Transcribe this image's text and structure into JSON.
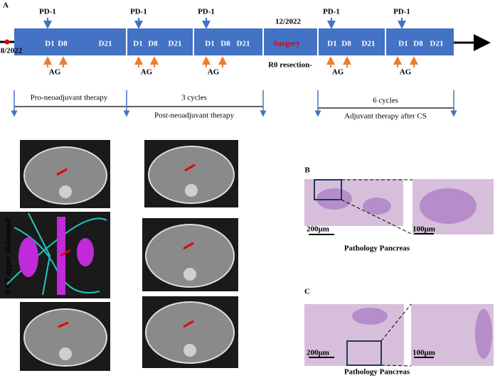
{
  "panel_labels": [
    "A",
    "B",
    "C"
  ],
  "timeline": {
    "start_date": "8/2022",
    "cycles": [
      {
        "pd1": "PD-1",
        "d1": "D1",
        "d8": "D8",
        "d21": "D21",
        "ag": "AG"
      },
      {
        "pd1": "PD-1",
        "d1": "D1",
        "d8": "D8",
        "d21": "D21",
        "ag": "AG"
      },
      {
        "pd1": "PD-1",
        "d1": "D1",
        "d8": "D8",
        "d21": "D21",
        "ag": "AG"
      },
      {
        "pd1": "PD-1",
        "d1": "D1",
        "d8": "D8",
        "d21": "D21",
        "ag": "AG"
      },
      {
        "pd1": "PD-1",
        "d1": "D1",
        "d8": "D8",
        "d21": "D21",
        "ag": "AG"
      }
    ],
    "surgery": {
      "date": "12/2022",
      "label": "Surgery",
      "margin": "R0 resection-"
    }
  },
  "phases": {
    "pre": {
      "label": "Pro-neoadjuvant therapy"
    },
    "post": {
      "count": "3 cycles",
      "label": "Post-neoadjuvant therapy"
    },
    "adjuvant": {
      "count": "6 cycles",
      "label": "Adjuvant therapy after CS"
    }
  },
  "ct": {
    "axis_label": "ECT upper abdominal"
  },
  "pathology": [
    {
      "scale_low": "200μm",
      "scale_high": "100μm",
      "caption": "Pathology Pancreas"
    },
    {
      "scale_low": "200μm",
      "scale_high": "100μm",
      "caption": "Pathology Pancreas"
    }
  ]
}
